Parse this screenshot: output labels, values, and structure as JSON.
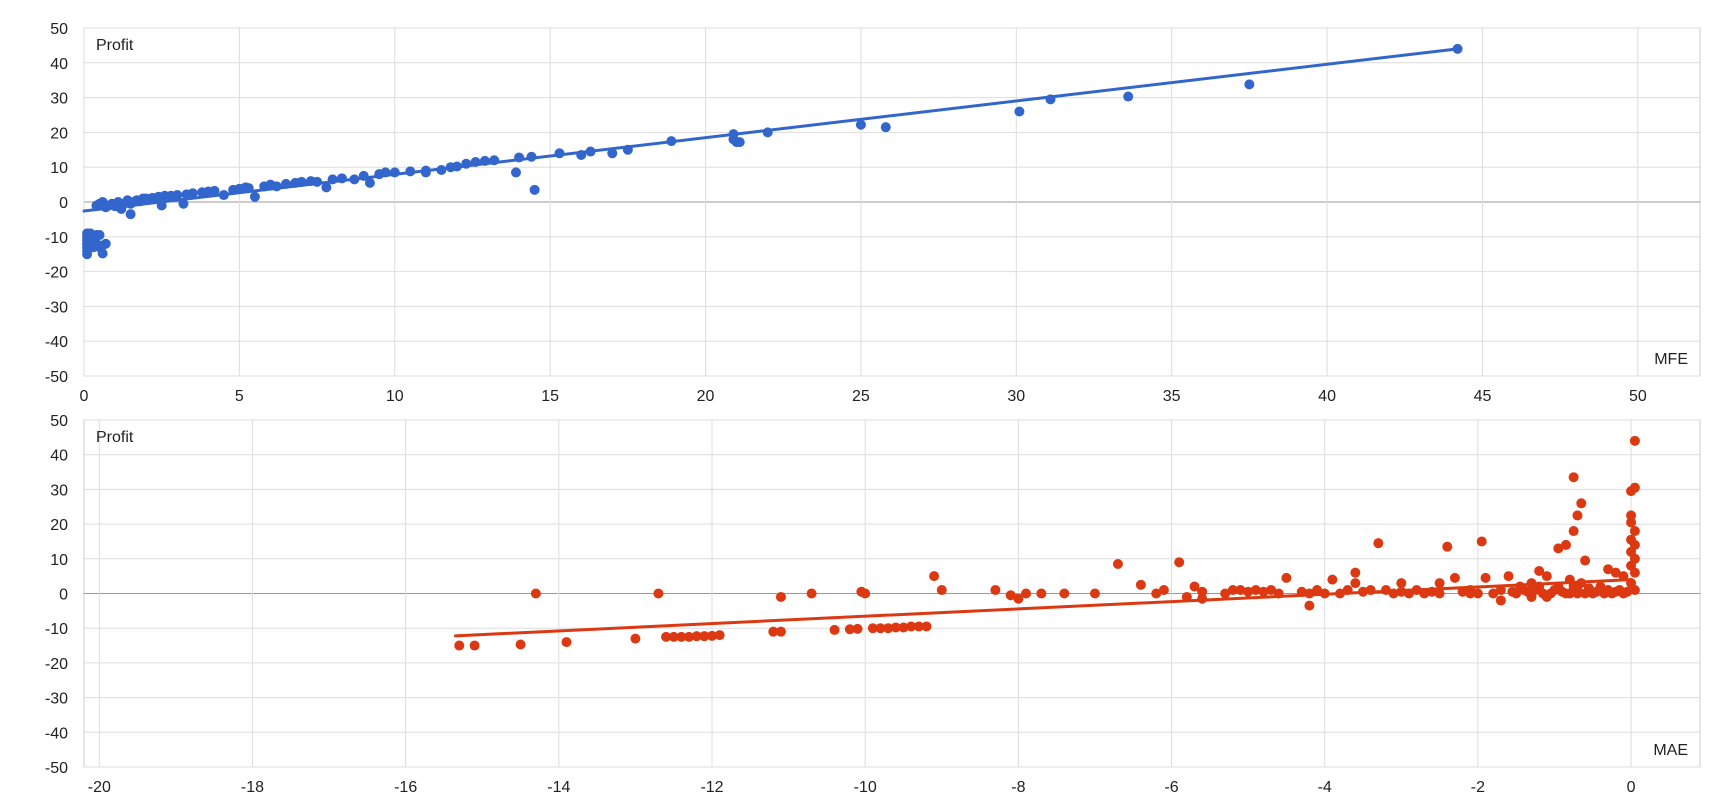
{
  "chart_data": [
    {
      "type": "scatter",
      "title": "",
      "ylabel": "Profit",
      "xlabel": "MFE",
      "xlim": [
        0,
        52
      ],
      "ylim": [
        -50,
        50
      ],
      "xticks": [
        0,
        5,
        10,
        15,
        20,
        25,
        30,
        35,
        40,
        45,
        50
      ],
      "yticks": [
        50,
        40,
        30,
        20,
        10,
        0,
        -10,
        -20,
        -30,
        -40,
        -50
      ],
      "grid": true,
      "color": "#3366cc",
      "trendline": {
        "x": [
          0.0,
          44.2
        ],
        "y": [
          -2.6,
          44.0
        ]
      },
      "points": [
        [
          0.1,
          -9
        ],
        [
          0.1,
          -10
        ],
        [
          0.1,
          -11
        ],
        [
          0.1,
          -12
        ],
        [
          0.1,
          -13
        ],
        [
          0.1,
          -14
        ],
        [
          0.1,
          -15
        ],
        [
          0.2,
          -9
        ],
        [
          0.2,
          -12
        ],
        [
          0.3,
          -10
        ],
        [
          0.3,
          -11
        ],
        [
          0.3,
          -13
        ],
        [
          0.4,
          -12
        ],
        [
          0.4,
          -9.5
        ],
        [
          0.5,
          -9.5
        ],
        [
          0.6,
          -12.5
        ],
        [
          0.6,
          -14.8
        ],
        [
          0.7,
          -12
        ],
        [
          0.5,
          -13
        ],
        [
          0.4,
          -1
        ],
        [
          0.5,
          -0.5
        ],
        [
          0.6,
          0
        ],
        [
          0.7,
          -1.5
        ],
        [
          0.8,
          -1
        ],
        [
          0.9,
          -0.5
        ],
        [
          1.0,
          -1.2
        ],
        [
          1.1,
          0
        ],
        [
          1.2,
          -2
        ],
        [
          1.3,
          -0.5
        ],
        [
          1.4,
          0.5
        ],
        [
          1.5,
          -0.5
        ],
        [
          1.6,
          0
        ],
        [
          1.7,
          0.5
        ],
        [
          1.8,
          0.2
        ],
        [
          1.5,
          -3.5
        ],
        [
          1.9,
          1
        ],
        [
          2.0,
          1
        ],
        [
          2.2,
          1.2
        ],
        [
          2.4,
          1.5
        ],
        [
          2.5,
          -1
        ],
        [
          2.6,
          1.8
        ],
        [
          2.8,
          1.8
        ],
        [
          3.0,
          2
        ],
        [
          3.2,
          -0.5
        ],
        [
          3.3,
          2.2
        ],
        [
          3.5,
          2.5
        ],
        [
          3.8,
          2.8
        ],
        [
          4.0,
          3
        ],
        [
          4.2,
          3.2
        ],
        [
          4.5,
          2
        ],
        [
          4.8,
          3.5
        ],
        [
          5.0,
          3.8
        ],
        [
          5.2,
          4.2
        ],
        [
          5.3,
          4
        ],
        [
          5.5,
          1.5
        ],
        [
          5.8,
          4.5
        ],
        [
          6.0,
          5
        ],
        [
          6.2,
          4.5
        ],
        [
          6.5,
          5.2
        ],
        [
          6.8,
          5.5
        ],
        [
          7.0,
          5.8
        ],
        [
          7.3,
          6
        ],
        [
          7.5,
          5.8
        ],
        [
          7.8,
          4.2
        ],
        [
          8.0,
          6.5
        ],
        [
          8.3,
          6.8
        ],
        [
          8.7,
          6.5
        ],
        [
          9.0,
          7.5
        ],
        [
          9.2,
          5.5
        ],
        [
          9.5,
          8
        ],
        [
          9.7,
          8.5
        ],
        [
          10.0,
          8.5
        ],
        [
          10.5,
          8.8
        ],
        [
          11.0,
          9
        ],
        [
          11.0,
          8.5
        ],
        [
          11.5,
          9.2
        ],
        [
          11.8,
          10
        ],
        [
          12.0,
          10.2
        ],
        [
          12.3,
          11
        ],
        [
          12.6,
          11.5
        ],
        [
          12.9,
          11.8
        ],
        [
          13.2,
          12
        ],
        [
          13.9,
          8.5
        ],
        [
          14.0,
          12.8
        ],
        [
          14.4,
          13
        ],
        [
          14.5,
          3.5
        ],
        [
          15.3,
          14
        ],
        [
          16.0,
          13.5
        ],
        [
          16.3,
          14.5
        ],
        [
          17.0,
          14
        ],
        [
          17.5,
          15
        ],
        [
          18.9,
          17.5
        ],
        [
          20.9,
          19.5
        ],
        [
          20.9,
          18
        ],
        [
          21.0,
          17.2
        ],
        [
          21.1,
          17.2
        ],
        [
          22.0,
          20
        ],
        [
          25.0,
          22.2
        ],
        [
          25.8,
          21.5
        ],
        [
          30.1,
          26
        ],
        [
          31.1,
          29.5
        ],
        [
          33.6,
          30.3
        ],
        [
          37.5,
          33.8
        ],
        [
          44.2,
          44
        ]
      ]
    },
    {
      "type": "scatter",
      "title": "",
      "ylabel": "Profit",
      "xlabel": "MAE",
      "xlim": [
        -20.2,
        0.9
      ],
      "ylim": [
        -50,
        50
      ],
      "xticks": [
        -20,
        -18,
        -16,
        -14,
        -12,
        -10,
        -8,
        -6,
        -4,
        -2,
        0
      ],
      "yticks": [
        50,
        40,
        30,
        20,
        10,
        0,
        -10,
        -20,
        -30,
        -40,
        -50
      ],
      "grid": true,
      "color": "#dc3912",
      "trendline": {
        "x": [
          -15.35,
          0.0
        ],
        "y": [
          -12.2,
          4.0
        ]
      },
      "points": [
        [
          -15.3,
          -15
        ],
        [
          -15.1,
          -15
        ],
        [
          -14.5,
          -14.7
        ],
        [
          -14.3,
          0
        ],
        [
          -13.9,
          -14
        ],
        [
          -13.0,
          -13
        ],
        [
          -12.7,
          0
        ],
        [
          -12.6,
          -12.5
        ],
        [
          -12.5,
          -12.5
        ],
        [
          -12.4,
          -12.5
        ],
        [
          -12.3,
          -12.5
        ],
        [
          -12.2,
          -12.3
        ],
        [
          -12.1,
          -12.3
        ],
        [
          -12.0,
          -12.2
        ],
        [
          -11.9,
          -12
        ],
        [
          -11.2,
          -11
        ],
        [
          -11.1,
          -11
        ],
        [
          -11.1,
          -1
        ],
        [
          -10.7,
          0
        ],
        [
          -10.4,
          -10.5
        ],
        [
          -10.2,
          -10.3
        ],
        [
          -10.1,
          -10.2
        ],
        [
          -10.05,
          0.5
        ],
        [
          -10.0,
          0
        ],
        [
          -9.9,
          -10
        ],
        [
          -9.8,
          -10
        ],
        [
          -9.7,
          -10
        ],
        [
          -9.6,
          -9.8
        ],
        [
          -9.5,
          -9.8
        ],
        [
          -9.4,
          -9.5
        ],
        [
          -9.3,
          -9.5
        ],
        [
          -9.2,
          -9.5
        ],
        [
          -9.1,
          5
        ],
        [
          -9.0,
          1
        ],
        [
          -8.3,
          1
        ],
        [
          -8.1,
          -0.5
        ],
        [
          -8.0,
          -1.5
        ],
        [
          -7.9,
          0
        ],
        [
          -7.7,
          0
        ],
        [
          -7.4,
          0
        ],
        [
          -7.0,
          0
        ],
        [
          -6.7,
          8.5
        ],
        [
          -6.4,
          2.5
        ],
        [
          -6.2,
          0
        ],
        [
          -6.1,
          1
        ],
        [
          -5.9,
          9
        ],
        [
          -5.8,
          -1
        ],
        [
          -5.7,
          2
        ],
        [
          -5.6,
          -1.5
        ],
        [
          -5.6,
          0.5
        ],
        [
          -5.3,
          0
        ],
        [
          -5.2,
          1
        ],
        [
          -5.1,
          1
        ],
        [
          -5.0,
          0.5
        ],
        [
          -4.9,
          1
        ],
        [
          -4.8,
          0.5
        ],
        [
          -4.7,
          1
        ],
        [
          -4.6,
          0
        ],
        [
          -4.5,
          4.5
        ],
        [
          -4.3,
          0.5
        ],
        [
          -4.2,
          0
        ],
        [
          -4.2,
          -3.5
        ],
        [
          -4.1,
          1
        ],
        [
          -4.0,
          0
        ],
        [
          -3.9,
          4
        ],
        [
          -3.8,
          0
        ],
        [
          -3.7,
          1
        ],
        [
          -3.6,
          6
        ],
        [
          -3.6,
          3
        ],
        [
          -3.5,
          0.5
        ],
        [
          -3.4,
          1
        ],
        [
          -3.3,
          14.5
        ],
        [
          -3.2,
          1
        ],
        [
          -3.1,
          0
        ],
        [
          -3.0,
          3
        ],
        [
          -3.0,
          0.5
        ],
        [
          -2.9,
          0
        ],
        [
          -2.8,
          1
        ],
        [
          -2.7,
          0
        ],
        [
          -2.6,
          0.5
        ],
        [
          -2.5,
          3
        ],
        [
          -2.5,
          0
        ],
        [
          -2.4,
          13.5
        ],
        [
          -2.3,
          4.5
        ],
        [
          -2.2,
          0.5
        ],
        [
          -2.1,
          1
        ],
        [
          -2.1,
          0
        ],
        [
          -2.0,
          0
        ],
        [
          -1.95,
          15
        ],
        [
          -1.9,
          4.5
        ],
        [
          -1.8,
          0
        ],
        [
          -1.7,
          1
        ],
        [
          -1.7,
          -2
        ],
        [
          -1.6,
          5
        ],
        [
          -1.55,
          0.5
        ],
        [
          -1.5,
          0
        ],
        [
          -1.45,
          2
        ],
        [
          -1.4,
          1
        ],
        [
          -1.35,
          0.5
        ],
        [
          -1.3,
          3
        ],
        [
          -1.3,
          -1
        ],
        [
          -1.25,
          1
        ],
        [
          -1.2,
          6.5
        ],
        [
          -1.2,
          2
        ],
        [
          -1.15,
          0
        ],
        [
          -1.1,
          5
        ],
        [
          -1.1,
          -1
        ],
        [
          -1.05,
          0
        ],
        [
          -1.0,
          1
        ],
        [
          -0.95,
          2
        ],
        [
          -0.9,
          0.5
        ],
        [
          -0.85,
          0
        ],
        [
          -0.8,
          4
        ],
        [
          -0.8,
          0
        ],
        [
          -0.75,
          2
        ],
        [
          -0.7,
          1
        ],
        [
          -0.7,
          0
        ],
        [
          -0.65,
          3
        ],
        [
          -0.6,
          0
        ],
        [
          -0.55,
          1.5
        ],
        [
          -0.5,
          0
        ],
        [
          -0.45,
          0.5
        ],
        [
          -0.4,
          2
        ],
        [
          -0.35,
          0
        ],
        [
          -0.3,
          1
        ],
        [
          -0.25,
          0
        ],
        [
          -0.2,
          0.5
        ],
        [
          -0.15,
          1
        ],
        [
          -0.1,
          0
        ],
        [
          -0.05,
          0.5
        ],
        [
          -0.75,
          33.5
        ],
        [
          -0.65,
          26
        ],
        [
          -0.7,
          22.5
        ],
        [
          -0.75,
          18
        ],
        [
          -0.85,
          14
        ],
        [
          -0.95,
          13
        ],
        [
          -0.6,
          9.5
        ],
        [
          -0.3,
          7
        ],
        [
          -0.2,
          6
        ],
        [
          -0.1,
          5
        ],
        [
          0.0,
          29.5
        ],
        [
          0.0,
          22.5
        ],
        [
          0.0,
          20.5
        ],
        [
          0.0,
          15.5
        ],
        [
          0.0,
          12
        ],
        [
          0.0,
          8
        ],
        [
          0.0,
          3
        ],
        [
          0.05,
          44
        ],
        [
          0.05,
          30.5
        ],
        [
          0.05,
          18
        ],
        [
          0.05,
          14
        ],
        [
          0.05,
          10
        ],
        [
          0.05,
          6
        ],
        [
          0.05,
          1
        ]
      ]
    }
  ]
}
